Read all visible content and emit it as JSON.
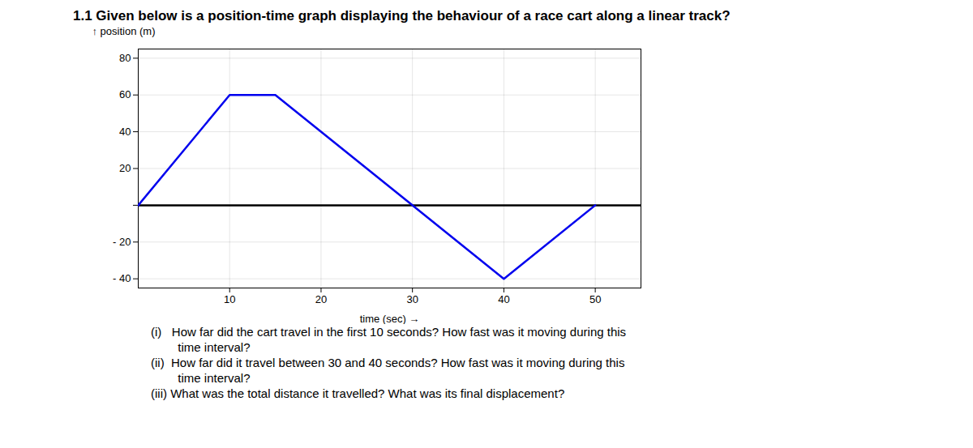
{
  "chart_data": {
    "type": "line",
    "title": "1.1 Given below is a position-time graph displaying the behaviour of a race cart along a linear track?",
    "x_label": "time (sec)",
    "y_label": "position (m)",
    "x": [
      0,
      10,
      15,
      40,
      50
    ],
    "values": [
      0,
      60,
      60,
      -40,
      0
    ],
    "color": "#0000EE",
    "xlim": [
      0,
      55
    ],
    "ylim": [
      -45,
      85
    ],
    "xticks": [
      10,
      20,
      30,
      40,
      50
    ],
    "yticks": [
      {
        "value": -40,
        "label": "- 40"
      },
      {
        "value": -20,
        "label": "- 20"
      },
      {
        "value": 0,
        "label": ""
      },
      20,
      40,
      60,
      80
    ],
    "grid": true,
    "annotations": [
      "(i)   How far did the cart travel in the first 10 seconds? How fast was it moving during this",
      "        time interval?",
      "(ii)  How far did it travel between 30 and 40 seconds? How fast was it moving during this",
      "        time interval?",
      "(iii) What was the total distance it travelled? What was its final displacement?"
    ]
  }
}
